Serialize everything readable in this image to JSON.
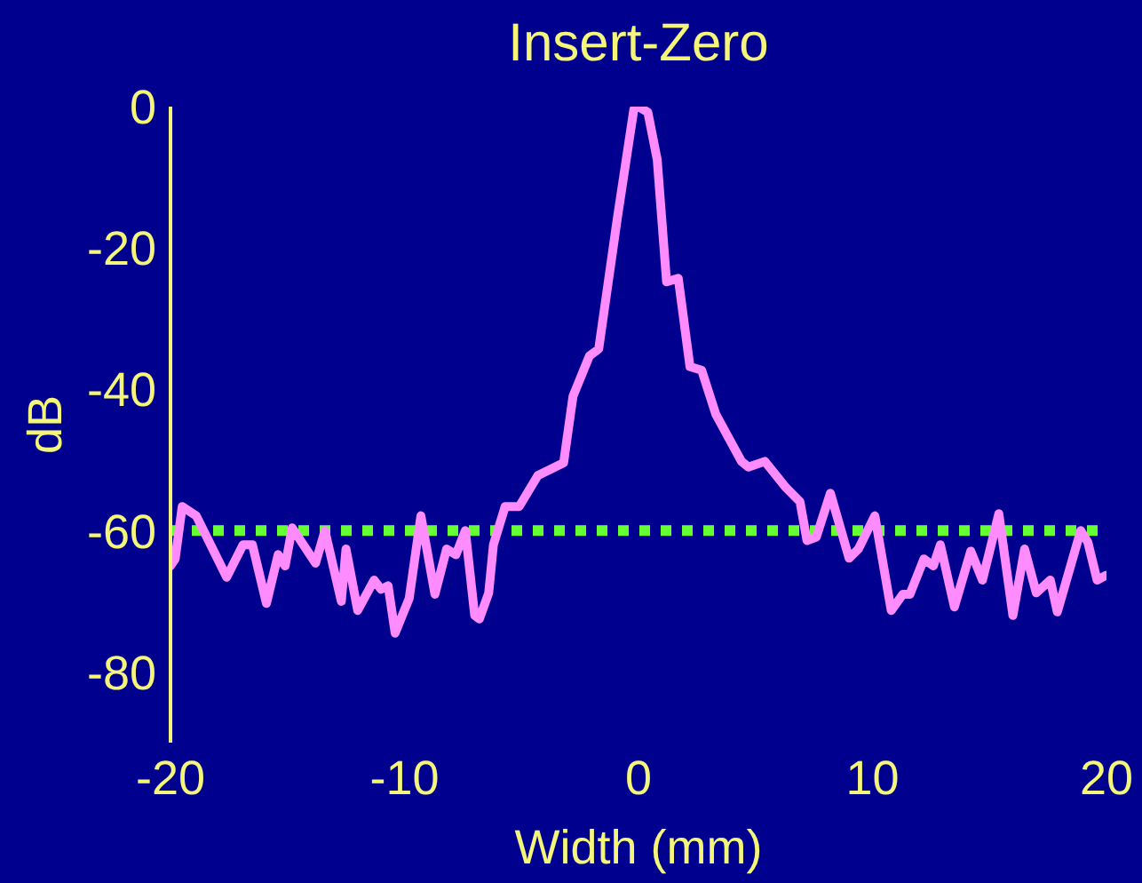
{
  "chart_data": {
    "type": "line",
    "title": "Insert-Zero",
    "xlabel": "Width (mm)",
    "ylabel": "dB",
    "x": [
      -20,
      -19.8,
      -19.5,
      -18.9,
      -17.6,
      -16.9,
      -16.5,
      -15.9,
      -15.4,
      -15.1,
      -14.8,
      -13.8,
      -13.4,
      -12.7,
      -12.5,
      -12,
      -11.3,
      -11,
      -10.7,
      -10.4,
      -9.8,
      -9.3,
      -8.7,
      -8.2,
      -7.8,
      -7.4,
      -7,
      -6.8,
      -6.4,
      -6.2,
      -5.7,
      -5.1,
      -4.3,
      -3.2,
      -2.8,
      -2.1,
      -1.7,
      -0.9,
      -0.2,
      0,
      0.4,
      0.8,
      1.2,
      1.7,
      2.2,
      2.7,
      3.3,
      4.4,
      4.7,
      5.4,
      6.3,
      6.9,
      7.2,
      7.6,
      8.2,
      9,
      9.4,
      10.1,
      10.8,
      11.3,
      11.6,
      12.2,
      12.6,
      12.9,
      13.5,
      14.2,
      14.7,
      15.4,
      16,
      16.5,
      17,
      17.6,
      17.9,
      18.9,
      19.2,
      19.6,
      20
    ],
    "series": [
      {
        "color": "#ff8cff",
        "values": [
          -65,
          -64,
          -56.6,
          -57.9,
          -66.6,
          -62,
          -62,
          -70.3,
          -63.4,
          -65,
          -59.6,
          -64.6,
          -60,
          -70,
          -62.6,
          -71.3,
          -67,
          -68.3,
          -67.8,
          -74.5,
          -69.6,
          -57.9,
          -69,
          -62.6,
          -63.4,
          -60,
          -72,
          -72.5,
          -68.8,
          -62,
          -56.6,
          -56.6,
          -52.2,
          -50.4,
          -41,
          -35.3,
          -34.3,
          -15.7,
          -0.4,
          0,
          -0.8,
          -7.5,
          -24.8,
          -24.3,
          -36.8,
          -37.3,
          -43.5,
          -50.2,
          -51,
          -50.2,
          -53.9,
          -55.9,
          -61.4,
          -60.9,
          -54.7,
          -63.9,
          -62.6,
          -57.9,
          -71.3,
          -69,
          -69,
          -64,
          -65,
          -62,
          -70.8,
          -62.9,
          -67,
          -57.6,
          -72,
          -62.6,
          -68.8,
          -67,
          -71.5,
          -60,
          -61.6,
          -67,
          -66.3
        ]
      }
    ],
    "xlim": [
      -20,
      20
    ],
    "xticks": [
      -20,
      -10,
      0,
      10,
      20
    ],
    "ylim": [
      -90,
      0
    ],
    "yticks": [
      -80,
      -60,
      -40,
      -20,
      0
    ],
    "ref_lines": [
      {
        "axis": "y",
        "value": -60,
        "color": "#66ff33",
        "line_style": "dotted"
      }
    ],
    "grid": false,
    "legend": false,
    "marker": "none",
    "line_style": "solid"
  }
}
